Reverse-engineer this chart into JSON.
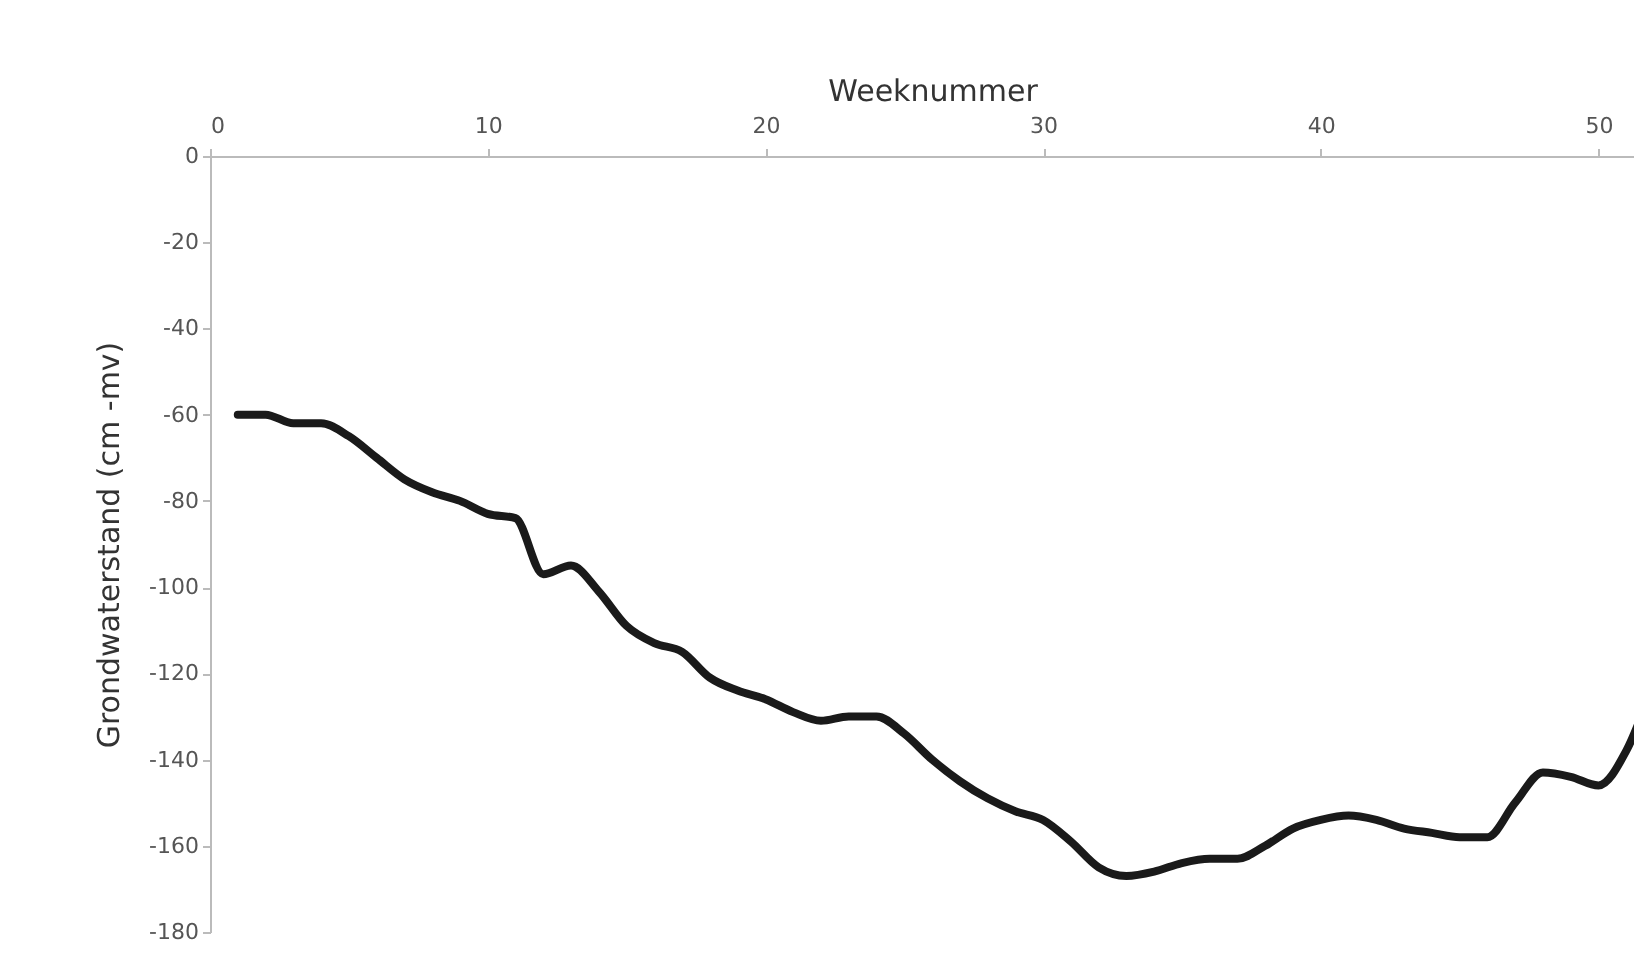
{
  "chart_data": {
    "type": "line",
    "xlabel": "Weeknummer",
    "ylabel": "Grondwaterstand (cm -mv)",
    "x": [
      1,
      2,
      3,
      4,
      5,
      6,
      7,
      8,
      9,
      10,
      11,
      12,
      13,
      14,
      15,
      16,
      17,
      18,
      19,
      20,
      21,
      22,
      23,
      24,
      25,
      26,
      27,
      28,
      29,
      30,
      31,
      32,
      33,
      34,
      35,
      36,
      37,
      38,
      39,
      40,
      41,
      42,
      43,
      44,
      45,
      46,
      47,
      48,
      49,
      50,
      51,
      52
    ],
    "series": [
      {
        "color": "#1a1a1a",
        "values": [
          -60,
          -60,
          -62,
          -62,
          -65,
          -70,
          -75,
          -78,
          -80,
          -83,
          -84,
          -97,
          -95,
          -101,
          -109,
          -113,
          -115,
          -121,
          -124,
          -126,
          -129,
          -131,
          -130,
          -130,
          -134,
          -140,
          -145,
          -149,
          -152,
          -154,
          -159,
          -165,
          -167,
          -166,
          -164,
          -163,
          -163,
          -160,
          -156,
          -154,
          -153,
          -154,
          -156,
          -157,
          -158,
          -158,
          -150,
          -143,
          -144,
          -146,
          -138,
          -122
        ]
      }
    ],
    "xlim": [
      0,
      52
    ],
    "xticks": [
      0,
      10,
      20,
      30,
      40,
      50
    ],
    "ylim": [
      -180,
      0
    ],
    "yticks": [
      0,
      -20,
      -40,
      -60,
      -80,
      -100,
      -120,
      -140,
      -160,
      -180
    ],
    "grid": false,
    "legend": false,
    "marker": "none",
    "line_style": "solid"
  }
}
